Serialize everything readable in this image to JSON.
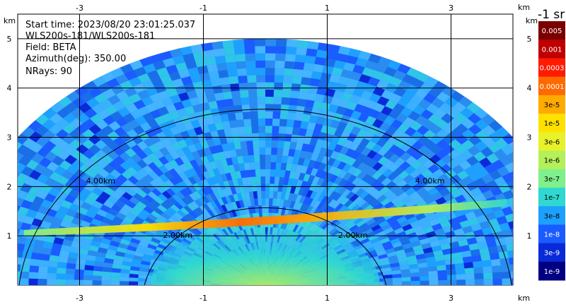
{
  "info": {
    "start_time": "Start time: 2023/08/20 23:01:25.037",
    "instrument": "WLS200s-181/WLS200s-181",
    "field": "Field: BETA",
    "azimuth": "Azimuth(deg): 350.00",
    "nrays": "NRays: 90"
  },
  "axes": {
    "unit_left": "km",
    "unit_right": "km",
    "unit_top": "km",
    "unit_bottom": "km",
    "x_ticks": [
      "-3",
      "-1",
      "1",
      "3"
    ],
    "y_ticks": [
      "1",
      "2",
      "3",
      "4",
      "5"
    ]
  },
  "colorbar": {
    "title": "-1 sr",
    "labels": [
      "0.005",
      "0.001",
      "0.0003",
      "0.0001",
      "3e-5",
      "1e-5",
      "3e-6",
      "1e-6",
      "3e-7",
      "1e-7",
      "3e-8",
      "1e-8",
      "3e-9",
      "1e-9"
    ],
    "colors": [
      "#7a0000",
      "#c00000",
      "#ff1a00",
      "#ff6a00",
      "#ffaa00",
      "#ffe100",
      "#e8f22a",
      "#b4f05a",
      "#7ff08c",
      "#2fd8d0",
      "#1ea0ff",
      "#1a5cff",
      "#0a2ad8",
      "#000080"
    ],
    "text_colors": [
      "#ffffff",
      "#ffffff",
      "#ffffff",
      "#ffffff",
      "#000000",
      "#000000",
      "#000000",
      "#000000",
      "#000000",
      "#000000",
      "#000000",
      "#ffffff",
      "#ffffff",
      "#ffffff"
    ]
  },
  "chart_data": {
    "type": "heatmap",
    "projection": "RHI (range-height)",
    "xlim_km": [
      -4.0,
      4.0
    ],
    "ylim_km": [
      0.0,
      5.5
    ],
    "x_ticks_km": [
      -3,
      -1,
      1,
      3
    ],
    "y_ticks_km": [
      1,
      2,
      3,
      4,
      5
    ],
    "grid": true,
    "max_range_km": 5.0,
    "range_rings": [
      {
        "range_km": 2.0,
        "label": "2.00km"
      },
      {
        "range_km": 4.0,
        "label": "4.00km"
      }
    ],
    "colorbar_scale": "log",
    "features": [
      {
        "description_km": "enhanced backscatter layer",
        "height_km": [
          1.0,
          1.4
        ],
        "beta_range": [
          "1e-5",
          "1e-4"
        ]
      },
      {
        "description_km": "background",
        "beta_range": [
          "3e-8",
          "3e-7"
        ]
      }
    ]
  }
}
